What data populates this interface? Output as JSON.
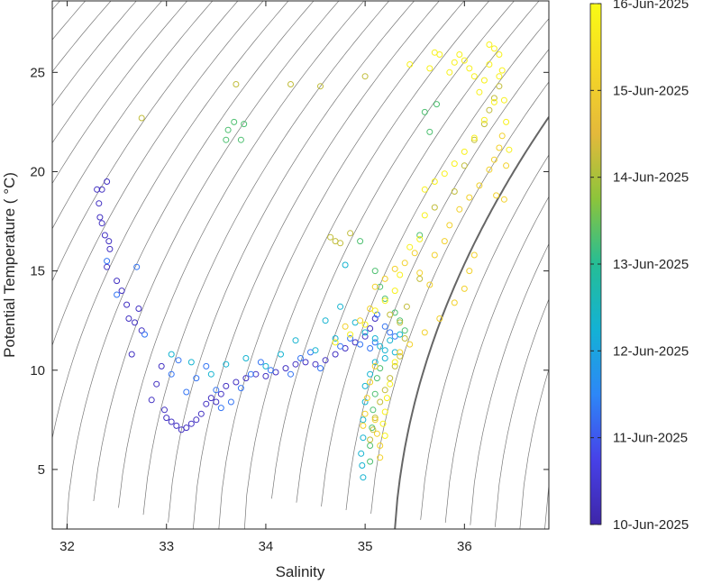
{
  "chart_data": {
    "type": "scatter",
    "title": "",
    "xlabel": "Salinity",
    "ylabel": "Potential Temperature ( °C)",
    "xlim": [
      31.85,
      36.85
    ],
    "ylim": [
      2.0,
      28.6
    ],
    "xticks": [
      "32",
      "33",
      "34",
      "35",
      "36"
    ],
    "xtick_values": [
      32,
      33,
      34,
      35,
      36
    ],
    "yticks": [
      "5",
      "10",
      "15",
      "20",
      "25"
    ],
    "ytick_values": [
      5,
      10,
      15,
      20,
      25
    ],
    "colorbar": {
      "labels": [
        "10-Jun-2025",
        "11-Jun-2025",
        "12-Jun-2025",
        "13-Jun-2025",
        "14-Jun-2025",
        "15-Jun-2025",
        "16-Jun-2025"
      ],
      "range_days": [
        0,
        6
      ],
      "colors": [
        "#3e26a8",
        "#4741e8",
        "#2d87f7",
        "#13b2d4",
        "#25bd95",
        "#8cc43b",
        "#e4b93b",
        "#f5d726",
        "#f9fb15"
      ]
    },
    "grid": false,
    "contours": "density isopleths (gray)",
    "series": [
      {
        "day": 0.3,
        "points": [
          [
            32.3,
            19.1
          ],
          [
            32.35,
            19.1
          ],
          [
            32.4,
            19.5
          ],
          [
            32.32,
            18.4
          ],
          [
            32.33,
            17.7
          ],
          [
            32.35,
            17.4
          ],
          [
            32.38,
            16.8
          ],
          [
            32.42,
            16.5
          ],
          [
            32.43,
            16.1
          ],
          [
            32.4,
            15.2
          ],
          [
            32.5,
            14.5
          ],
          [
            32.55,
            14.0
          ],
          [
            32.6,
            13.3
          ],
          [
            32.62,
            12.6
          ],
          [
            32.72,
            13.1
          ],
          [
            32.68,
            12.4
          ],
          [
            32.75,
            12.0
          ],
          [
            32.65,
            10.8
          ],
          [
            32.95,
            10.2
          ],
          [
            32.9,
            9.3
          ],
          [
            32.85,
            8.5
          ],
          [
            32.98,
            8.0
          ],
          [
            33.0,
            7.6
          ],
          [
            33.05,
            7.4
          ],
          [
            33.1,
            7.2
          ],
          [
            33.15,
            7.0
          ],
          [
            33.2,
            7.1
          ],
          [
            33.25,
            7.3
          ],
          [
            33.3,
            7.5
          ],
          [
            33.35,
            7.8
          ],
          [
            33.4,
            8.3
          ],
          [
            33.45,
            8.6
          ],
          [
            33.5,
            8.4
          ],
          [
            33.55,
            8.8
          ],
          [
            33.6,
            9.2
          ],
          [
            33.7,
            9.4
          ],
          [
            33.8,
            9.6
          ],
          [
            33.9,
            9.8
          ],
          [
            34.0,
            9.7
          ],
          [
            34.1,
            9.9
          ],
          [
            34.2,
            10.1
          ],
          [
            34.3,
            10.3
          ],
          [
            34.4,
            10.4
          ],
          [
            34.5,
            10.3
          ],
          [
            34.6,
            10.5
          ],
          [
            34.7,
            10.8
          ],
          [
            34.8,
            11.1
          ],
          [
            34.9,
            11.4
          ],
          [
            35.0,
            11.7
          ],
          [
            35.05,
            12.1
          ],
          [
            35.1,
            12.6
          ]
        ]
      },
      {
        "day": 1.3,
        "points": [
          [
            32.4,
            15.5
          ],
          [
            32.5,
            13.8
          ],
          [
            32.7,
            15.2
          ],
          [
            32.78,
            11.8
          ],
          [
            33.05,
            9.8
          ],
          [
            33.12,
            10.5
          ],
          [
            33.2,
            8.9
          ],
          [
            33.3,
            9.6
          ],
          [
            33.4,
            10.2
          ],
          [
            33.5,
            9.0
          ],
          [
            33.55,
            8.1
          ],
          [
            33.65,
            8.4
          ],
          [
            33.75,
            9.1
          ],
          [
            33.85,
            9.8
          ],
          [
            33.95,
            10.4
          ],
          [
            34.05,
            10.0
          ],
          [
            34.25,
            9.8
          ],
          [
            34.35,
            10.6
          ],
          [
            34.45,
            10.9
          ],
          [
            34.55,
            10.1
          ],
          [
            34.75,
            11.2
          ],
          [
            34.85,
            11.6
          ],
          [
            34.95,
            11.3
          ],
          [
            35.05,
            11.1
          ],
          [
            35.1,
            11.4
          ],
          [
            35.12,
            12.8
          ],
          [
            35.2,
            12.2
          ],
          [
            35.25,
            11.9
          ],
          [
            35.3,
            11.7
          ]
        ]
      },
      {
        "day": 2.3,
        "points": [
          [
            33.05,
            10.8
          ],
          [
            33.25,
            10.4
          ],
          [
            33.45,
            9.8
          ],
          [
            33.6,
            10.3
          ],
          [
            33.8,
            10.6
          ],
          [
            34.0,
            10.2
          ],
          [
            34.15,
            10.8
          ],
          [
            34.3,
            11.5
          ],
          [
            34.5,
            11.0
          ],
          [
            34.6,
            12.5
          ],
          [
            34.7,
            11.6
          ],
          [
            34.75,
            13.2
          ],
          [
            34.8,
            15.3
          ],
          [
            34.9,
            12.4
          ],
          [
            35.0,
            11.9
          ],
          [
            35.1,
            11.6
          ],
          [
            35.15,
            11.2
          ],
          [
            35.2,
            11.0
          ],
          [
            35.25,
            11.5
          ],
          [
            35.3,
            10.9
          ],
          [
            35.35,
            11.8
          ],
          [
            35.2,
            10.6
          ],
          [
            35.1,
            10.4
          ],
          [
            35.05,
            9.8
          ],
          [
            35.0,
            9.2
          ],
          [
            35.0,
            8.4
          ],
          [
            34.98,
            7.5
          ],
          [
            34.98,
            6.6
          ],
          [
            34.96,
            5.8
          ],
          [
            34.97,
            5.2
          ],
          [
            34.98,
            4.6
          ]
        ]
      },
      {
        "day": 3.3,
        "points": [
          [
            33.6,
            21.6
          ],
          [
            33.62,
            22.1
          ],
          [
            33.68,
            22.5
          ],
          [
            33.75,
            21.6
          ],
          [
            33.78,
            22.4
          ],
          [
            34.95,
            16.5
          ],
          [
            35.1,
            15.0
          ],
          [
            35.15,
            14.2
          ],
          [
            35.2,
            13.6
          ],
          [
            35.3,
            12.9
          ],
          [
            35.35,
            12.5
          ],
          [
            35.4,
            12.0
          ],
          [
            35.05,
            5.4
          ],
          [
            35.05,
            6.2
          ],
          [
            35.07,
            7.1
          ],
          [
            35.08,
            8.0
          ],
          [
            35.1,
            8.8
          ],
          [
            35.12,
            9.6
          ],
          [
            35.15,
            10.1
          ],
          [
            35.55,
            16.8
          ],
          [
            35.6,
            23.0
          ],
          [
            35.65,
            22.0
          ],
          [
            35.72,
            23.4
          ]
        ]
      },
      {
        "day": 4.2,
        "points": [
          [
            32.75,
            22.7
          ],
          [
            33.7,
            24.4
          ],
          [
            34.25,
            24.4
          ],
          [
            34.55,
            24.3
          ],
          [
            34.65,
            16.7
          ],
          [
            34.7,
            16.5
          ],
          [
            34.75,
            16.4
          ],
          [
            34.85,
            16.9
          ],
          [
            35.0,
            24.8
          ],
          [
            35.25,
            12.8
          ],
          [
            35.35,
            12.4
          ],
          [
            35.4,
            11.6
          ],
          [
            35.42,
            13.2
          ],
          [
            35.55,
            14.6
          ],
          [
            35.7,
            18.2
          ],
          [
            35.9,
            19.0
          ],
          [
            36.0,
            20.3
          ],
          [
            36.1,
            21.6
          ],
          [
            36.2,
            22.4
          ],
          [
            36.25,
            23.1
          ],
          [
            36.3,
            23.7
          ],
          [
            36.35,
            24.3
          ],
          [
            35.35,
            10.7
          ],
          [
            35.3,
            10.2
          ],
          [
            35.25,
            9.6
          ],
          [
            35.2,
            9.0
          ],
          [
            35.15,
            8.4
          ],
          [
            35.1,
            7.6
          ],
          [
            35.08,
            7.0
          ],
          [
            35.05,
            6.5
          ]
        ]
      },
      {
        "day": 5.1,
        "points": [
          [
            34.8,
            12.2
          ],
          [
            34.95,
            12.5
          ],
          [
            35.05,
            13.1
          ],
          [
            35.1,
            14.2
          ],
          [
            35.2,
            14.6
          ],
          [
            35.3,
            15.1
          ],
          [
            35.4,
            15.4
          ],
          [
            35.5,
            15.9
          ],
          [
            35.55,
            14.9
          ],
          [
            35.65,
            14.3
          ],
          [
            35.7,
            15.8
          ],
          [
            35.8,
            16.5
          ],
          [
            35.85,
            17.3
          ],
          [
            35.95,
            18.1
          ],
          [
            36.05,
            18.7
          ],
          [
            36.15,
            19.3
          ],
          [
            36.25,
            20.1
          ],
          [
            36.3,
            20.6
          ],
          [
            36.35,
            21.2
          ],
          [
            36.38,
            21.8
          ],
          [
            36.32,
            18.8
          ],
          [
            36.4,
            18.6
          ],
          [
            36.42,
            20.3
          ],
          [
            35.1,
            10.2
          ],
          [
            35.05,
            9.4
          ],
          [
            35.02,
            8.6
          ],
          [
            35.0,
            7.8
          ],
          [
            34.98,
            7.2
          ],
          [
            35.1,
            7.5
          ],
          [
            35.12,
            6.8
          ],
          [
            35.15,
            6.2
          ],
          [
            35.15,
            5.6
          ],
          [
            35.35,
            10.9
          ],
          [
            35.45,
            11.3
          ],
          [
            35.6,
            11.9
          ],
          [
            35.75,
            12.6
          ],
          [
            35.9,
            13.4
          ],
          [
            36.0,
            14.1
          ],
          [
            36.05,
            15.0
          ],
          [
            36.1,
            15.8
          ]
        ]
      },
      {
        "day": 5.8,
        "points": [
          [
            34.7,
            11.4
          ],
          [
            34.85,
            11.8
          ],
          [
            35.0,
            12.3
          ],
          [
            35.1,
            13.0
          ],
          [
            35.2,
            13.5
          ],
          [
            35.3,
            14.0
          ],
          [
            35.35,
            14.8
          ],
          [
            35.45,
            16.2
          ],
          [
            35.55,
            16.6
          ],
          [
            35.6,
            17.8
          ],
          [
            35.6,
            19.1
          ],
          [
            35.7,
            19.5
          ],
          [
            35.8,
            19.9
          ],
          [
            35.9,
            20.4
          ],
          [
            36.0,
            21.0
          ],
          [
            36.1,
            21.7
          ],
          [
            36.2,
            22.6
          ],
          [
            36.3,
            23.5
          ],
          [
            36.35,
            24.8
          ],
          [
            36.38,
            25.1
          ],
          [
            36.35,
            25.9
          ],
          [
            36.3,
            26.2
          ],
          [
            36.25,
            25.4
          ],
          [
            36.2,
            24.6
          ],
          [
            36.15,
            24.0
          ],
          [
            36.1,
            24.8
          ],
          [
            36.05,
            25.2
          ],
          [
            36.0,
            25.6
          ],
          [
            35.95,
            25.9
          ],
          [
            35.9,
            25.5
          ],
          [
            35.85,
            25.0
          ],
          [
            35.75,
            25.9
          ],
          [
            35.7,
            26.0
          ],
          [
            35.65,
            25.2
          ],
          [
            35.45,
            25.4
          ],
          [
            36.25,
            26.4
          ],
          [
            36.4,
            23.6
          ],
          [
            36.42,
            22.5
          ],
          [
            36.45,
            21.1
          ],
          [
            35.3,
            10.4
          ],
          [
            35.25,
            9.3
          ],
          [
            35.22,
            8.6
          ],
          [
            35.2,
            7.9
          ],
          [
            35.18,
            7.3
          ],
          [
            35.2,
            6.7
          ]
        ]
      }
    ]
  }
}
